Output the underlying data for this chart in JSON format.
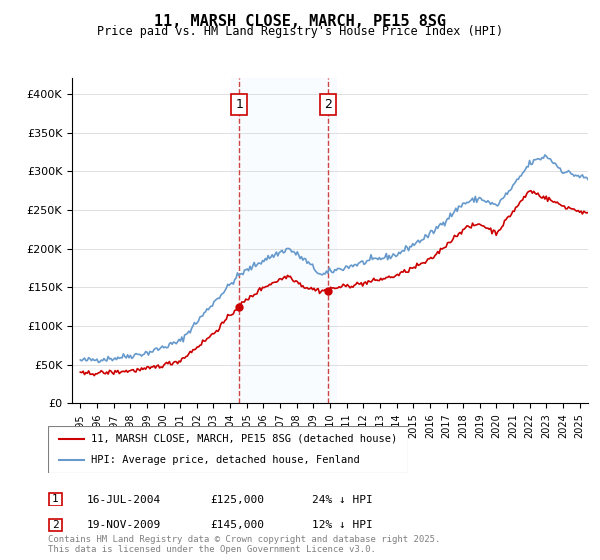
{
  "title": "11, MARSH CLOSE, MARCH, PE15 8SG",
  "subtitle": "Price paid vs. HM Land Registry's House Price Index (HPI)",
  "footer": "Contains HM Land Registry data © Crown copyright and database right 2025.\nThis data is licensed under the Open Government Licence v3.0.",
  "legend_line1": "11, MARSH CLOSE, MARCH, PE15 8SG (detached house)",
  "legend_line2": "HPI: Average price, detached house, Fenland",
  "sale1_label": "1",
  "sale1_date": "16-JUL-2004",
  "sale1_price": "£125,000",
  "sale1_hpi": "24% ↓ HPI",
  "sale2_label": "2",
  "sale2_date": "19-NOV-2009",
  "sale2_price": "£145,000",
  "sale2_hpi": "12% ↓ HPI",
  "hpi_color": "#6699cc",
  "price_color": "#cc0000",
  "shade_color": "#ddeeff",
  "annotation_box_color": "#cc0000",
  "ylim_min": 0,
  "ylim_max": 420000,
  "yticks": [
    0,
    50000,
    100000,
    150000,
    200000,
    250000,
    300000,
    350000,
    400000
  ],
  "ytick_labels": [
    "£0",
    "£50K",
    "£100K",
    "£150K",
    "£200K",
    "£250K",
    "£300K",
    "£350K",
    "£400K"
  ],
  "sale1_year": 2004.54,
  "sale2_year": 2009.89,
  "sale1_price_val": 125000,
  "sale2_price_val": 145000,
  "x_start": 1995,
  "x_end": 2025.5,
  "xtick_years": [
    1995,
    1996,
    1997,
    1998,
    1999,
    2000,
    2001,
    2002,
    2003,
    2004,
    2005,
    2006,
    2007,
    2008,
    2009,
    2010,
    2011,
    2012,
    2013,
    2014,
    2015,
    2016,
    2017,
    2018,
    2019,
    2020,
    2021,
    2022,
    2023,
    2024,
    2025
  ]
}
